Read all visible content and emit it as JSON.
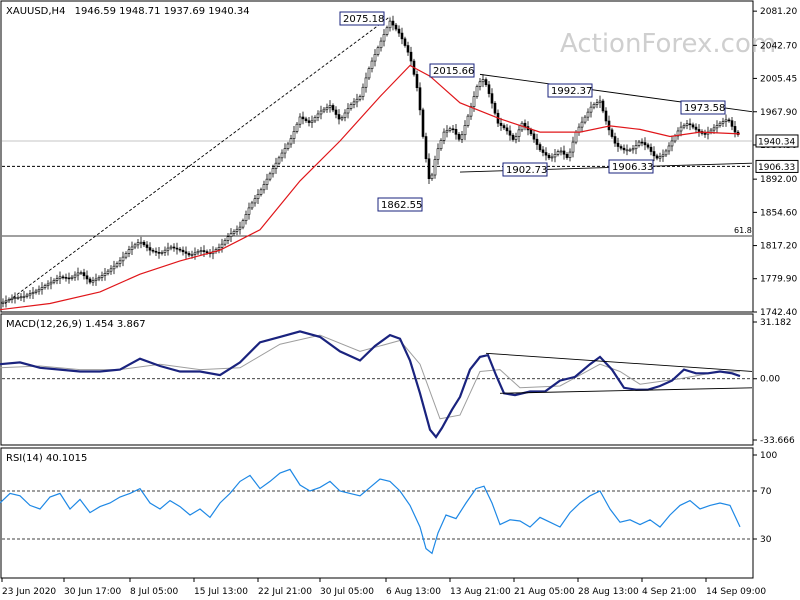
{
  "watermark": "ActionForex.com",
  "header": {
    "symbol": "XAUUSD,H4",
    "ohlc": "1946.59 1948.71 1937.69 1940.34"
  },
  "chart_data": [
    {
      "type": "candlestick",
      "title": "XAUUSD,H4 1946.59 1948.71 1937.69 1940.34",
      "ylim": [
        1742.4,
        2087
      ],
      "y_ticks": [
        "2081.20",
        "2042.70",
        "2005.45",
        "1967.90",
        "1930.50",
        "1892.00",
        "1854.60",
        "1817.20",
        "1779.90",
        "1742.40"
      ],
      "last_price": "1940.34",
      "support_level": "1906.33",
      "fib_label": "61.8",
      "fib_level": 1828,
      "annotations": [
        "2075.18",
        "2015.66",
        "1992.37",
        "1973.58",
        "1862.55",
        "1902.73",
        "1906.33"
      ],
      "close_path": [
        [
          0,
          1752
        ],
        [
          12,
          1758
        ],
        [
          24,
          1760
        ],
        [
          36,
          1766
        ],
        [
          48,
          1774
        ],
        [
          60,
          1782
        ],
        [
          70,
          1780
        ],
        [
          80,
          1788
        ],
        [
          90,
          1776
        ],
        [
          100,
          1782
        ],
        [
          110,
          1790
        ],
        [
          120,
          1800
        ],
        [
          130,
          1814
        ],
        [
          140,
          1822
        ],
        [
          150,
          1812
        ],
        [
          160,
          1808
        ],
        [
          170,
          1816
        ],
        [
          180,
          1812
        ],
        [
          190,
          1806
        ],
        [
          200,
          1812
        ],
        [
          210,
          1808
        ],
        [
          220,
          1816
        ],
        [
          230,
          1830
        ],
        [
          240,
          1838
        ],
        [
          250,
          1862
        ],
        [
          260,
          1878
        ],
        [
          270,
          1898
        ],
        [
          280,
          1918
        ],
        [
          290,
          1935
        ],
        [
          300,
          1962
        ],
        [
          310,
          1955
        ],
        [
          320,
          1968
        ],
        [
          330,
          1975
        ],
        [
          340,
          1958
        ],
        [
          350,
          1975
        ],
        [
          360,
          1985
        ],
        [
          370,
          2020
        ],
        [
          380,
          2045
        ],
        [
          390,
          2070
        ],
        [
          400,
          2055
        ],
        [
          410,
          2030
        ],
        [
          418,
          1990
        ],
        [
          424,
          1930
        ],
        [
          430,
          1885
        ],
        [
          436,
          1920
        ],
        [
          444,
          1945
        ],
        [
          452,
          1950
        ],
        [
          460,
          1935
        ],
        [
          470,
          1970
        ],
        [
          478,
          2000
        ],
        [
          484,
          2005
        ],
        [
          490,
          1985
        ],
        [
          498,
          1955
        ],
        [
          506,
          1948
        ],
        [
          514,
          1935
        ],
        [
          522,
          1955
        ],
        [
          530,
          1945
        ],
        [
          540,
          1925
        ],
        [
          550,
          1915
        ],
        [
          560,
          1925
        ],
        [
          568,
          1915
        ],
        [
          576,
          1945
        ],
        [
          584,
          1960
        ],
        [
          592,
          1975
        ],
        [
          600,
          1980
        ],
        [
          608,
          1950
        ],
        [
          616,
          1930
        ],
        [
          624,
          1925
        ],
        [
          632,
          1925
        ],
        [
          640,
          1935
        ],
        [
          648,
          1928
        ],
        [
          656,
          1915
        ],
        [
          664,
          1920
        ],
        [
          672,
          1935
        ],
        [
          680,
          1950
        ],
        [
          688,
          1955
        ],
        [
          696,
          1948
        ],
        [
          704,
          1942
        ],
        [
          712,
          1948
        ],
        [
          720,
          1955
        ],
        [
          728,
          1960
        ],
        [
          735,
          1945
        ],
        [
          740,
          1940.34
        ]
      ],
      "ma_path": [
        [
          0,
          1745
        ],
        [
          50,
          1752
        ],
        [
          100,
          1765
        ],
        [
          140,
          1785
        ],
        [
          180,
          1800
        ],
        [
          220,
          1812
        ],
        [
          260,
          1835
        ],
        [
          300,
          1890
        ],
        [
          340,
          1935
        ],
        [
          380,
          1985
        ],
        [
          410,
          2020
        ],
        [
          430,
          2008
        ],
        [
          460,
          1978
        ],
        [
          500,
          1960
        ],
        [
          540,
          1945
        ],
        [
          580,
          1945
        ],
        [
          610,
          1952
        ],
        [
          640,
          1948
        ],
        [
          670,
          1940
        ],
        [
          700,
          1945
        ],
        [
          740,
          1943
        ]
      ],
      "trendlines": [
        {
          "from": [
            5,
            1752
          ],
          "to": [
            390,
            2075
          ]
        },
        {
          "from": [
            480,
            2010
          ],
          "to": [
            752,
            1968
          ]
        },
        {
          "from": [
            460,
            1900
          ],
          "to": [
            752,
            1910
          ]
        }
      ]
    },
    {
      "type": "line",
      "title": "MACD(12,26,9) 1.454 3.867",
      "ylim": [
        -33.666,
        31.182
      ],
      "y_ticks": [
        "31.182",
        "0.00",
        "-33.666"
      ],
      "macd_path": [
        [
          0,
          8
        ],
        [
          20,
          9
        ],
        [
          40,
          6
        ],
        [
          60,
          5
        ],
        [
          80,
          4
        ],
        [
          100,
          4
        ],
        [
          120,
          5
        ],
        [
          140,
          11
        ],
        [
          160,
          7
        ],
        [
          180,
          4
        ],
        [
          200,
          4
        ],
        [
          220,
          2
        ],
        [
          240,
          9
        ],
        [
          260,
          20
        ],
        [
          280,
          23
        ],
        [
          300,
          26
        ],
        [
          320,
          23
        ],
        [
          340,
          15
        ],
        [
          360,
          10
        ],
        [
          375,
          18
        ],
        [
          390,
          24
        ],
        [
          400,
          22
        ],
        [
          410,
          10
        ],
        [
          420,
          -8
        ],
        [
          430,
          -28
        ],
        [
          436,
          -32
        ],
        [
          442,
          -27
        ],
        [
          452,
          -17
        ],
        [
          460,
          -10
        ],
        [
          470,
          5
        ],
        [
          480,
          12
        ],
        [
          488,
          13
        ],
        [
          496,
          2
        ],
        [
          504,
          -8
        ],
        [
          515,
          -9
        ],
        [
          530,
          -7
        ],
        [
          545,
          -7
        ],
        [
          560,
          -1
        ],
        [
          575,
          1
        ],
        [
          590,
          8
        ],
        [
          600,
          12
        ],
        [
          612,
          5
        ],
        [
          624,
          -5
        ],
        [
          636,
          -6
        ],
        [
          648,
          -6
        ],
        [
          660,
          -4
        ],
        [
          672,
          -1
        ],
        [
          684,
          5
        ],
        [
          696,
          3
        ],
        [
          708,
          3
        ],
        [
          720,
          4
        ],
        [
          732,
          3
        ],
        [
          740,
          1.454
        ]
      ],
      "signal_path": [
        [
          0,
          6
        ],
        [
          40,
          7
        ],
        [
          80,
          5
        ],
        [
          120,
          5
        ],
        [
          160,
          8
        ],
        [
          200,
          5
        ],
        [
          240,
          6
        ],
        [
          280,
          19
        ],
        [
          320,
          24
        ],
        [
          360,
          15
        ],
        [
          400,
          21
        ],
        [
          420,
          8
        ],
        [
          440,
          -22
        ],
        [
          460,
          -20
        ],
        [
          480,
          4
        ],
        [
          500,
          5
        ],
        [
          520,
          -5
        ],
        [
          560,
          -4
        ],
        [
          600,
          8
        ],
        [
          620,
          4
        ],
        [
          640,
          -3
        ],
        [
          680,
          0
        ],
        [
          720,
          4
        ],
        [
          740,
          3.867
        ]
      ],
      "trendlines": [
        {
          "from": [
            486,
            14
          ],
          "to": [
            752,
            4
          ]
        },
        {
          "from": [
            500,
            -8
          ],
          "to": [
            752,
            -5
          ]
        }
      ]
    },
    {
      "type": "line",
      "title": "RSI(14) 40.1015",
      "ylim": [
        0,
        100
      ],
      "y_ticks": [
        "100",
        "70",
        "30"
      ],
      "rsi_path": [
        [
          0,
          60
        ],
        [
          10,
          68
        ],
        [
          20,
          66
        ],
        [
          30,
          58
        ],
        [
          40,
          55
        ],
        [
          50,
          65
        ],
        [
          60,
          68
        ],
        [
          70,
          55
        ],
        [
          80,
          63
        ],
        [
          90,
          52
        ],
        [
          100,
          57
        ],
        [
          110,
          60
        ],
        [
          120,
          65
        ],
        [
          130,
          68
        ],
        [
          140,
          72
        ],
        [
          150,
          60
        ],
        [
          160,
          55
        ],
        [
          170,
          62
        ],
        [
          180,
          57
        ],
        [
          190,
          50
        ],
        [
          200,
          55
        ],
        [
          210,
          48
        ],
        [
          220,
          60
        ],
        [
          230,
          68
        ],
        [
          240,
          78
        ],
        [
          250,
          83
        ],
        [
          260,
          72
        ],
        [
          270,
          78
        ],
        [
          280,
          85
        ],
        [
          290,
          88
        ],
        [
          300,
          75
        ],
        [
          310,
          70
        ],
        [
          320,
          73
        ],
        [
          330,
          78
        ],
        [
          340,
          70
        ],
        [
          350,
          68
        ],
        [
          360,
          66
        ],
        [
          370,
          73
        ],
        [
          380,
          80
        ],
        [
          390,
          78
        ],
        [
          400,
          70
        ],
        [
          410,
          58
        ],
        [
          420,
          40
        ],
        [
          426,
          22
        ],
        [
          432,
          18
        ],
        [
          438,
          35
        ],
        [
          446,
          50
        ],
        [
          456,
          47
        ],
        [
          466,
          60
        ],
        [
          476,
          72
        ],
        [
          484,
          74
        ],
        [
          492,
          60
        ],
        [
          500,
          42
        ],
        [
          510,
          46
        ],
        [
          520,
          45
        ],
        [
          530,
          40
        ],
        [
          540,
          48
        ],
        [
          550,
          44
        ],
        [
          560,
          40
        ],
        [
          570,
          52
        ],
        [
          580,
          60
        ],
        [
          590,
          66
        ],
        [
          600,
          70
        ],
        [
          610,
          55
        ],
        [
          620,
          44
        ],
        [
          630,
          46
        ],
        [
          640,
          42
        ],
        [
          650,
          46
        ],
        [
          660,
          40
        ],
        [
          670,
          50
        ],
        [
          680,
          58
        ],
        [
          690,
          62
        ],
        [
          700,
          55
        ],
        [
          710,
          58
        ],
        [
          720,
          60
        ],
        [
          730,
          58
        ],
        [
          740,
          40.1015
        ]
      ]
    }
  ],
  "x_axis_labels": [
    "23 Jun 2020",
    "30 Jun 17:00",
    "8 Jul 05:00",
    "15 Jul 13:00",
    "22 Jul 21:00",
    "30 Jul 05:00",
    "6 Aug 13:00",
    "13 Aug 21:00",
    "21 Aug 05:00",
    "28 Aug 13:00",
    "4 Sep 21:00",
    "14 Sep 09:00"
  ]
}
